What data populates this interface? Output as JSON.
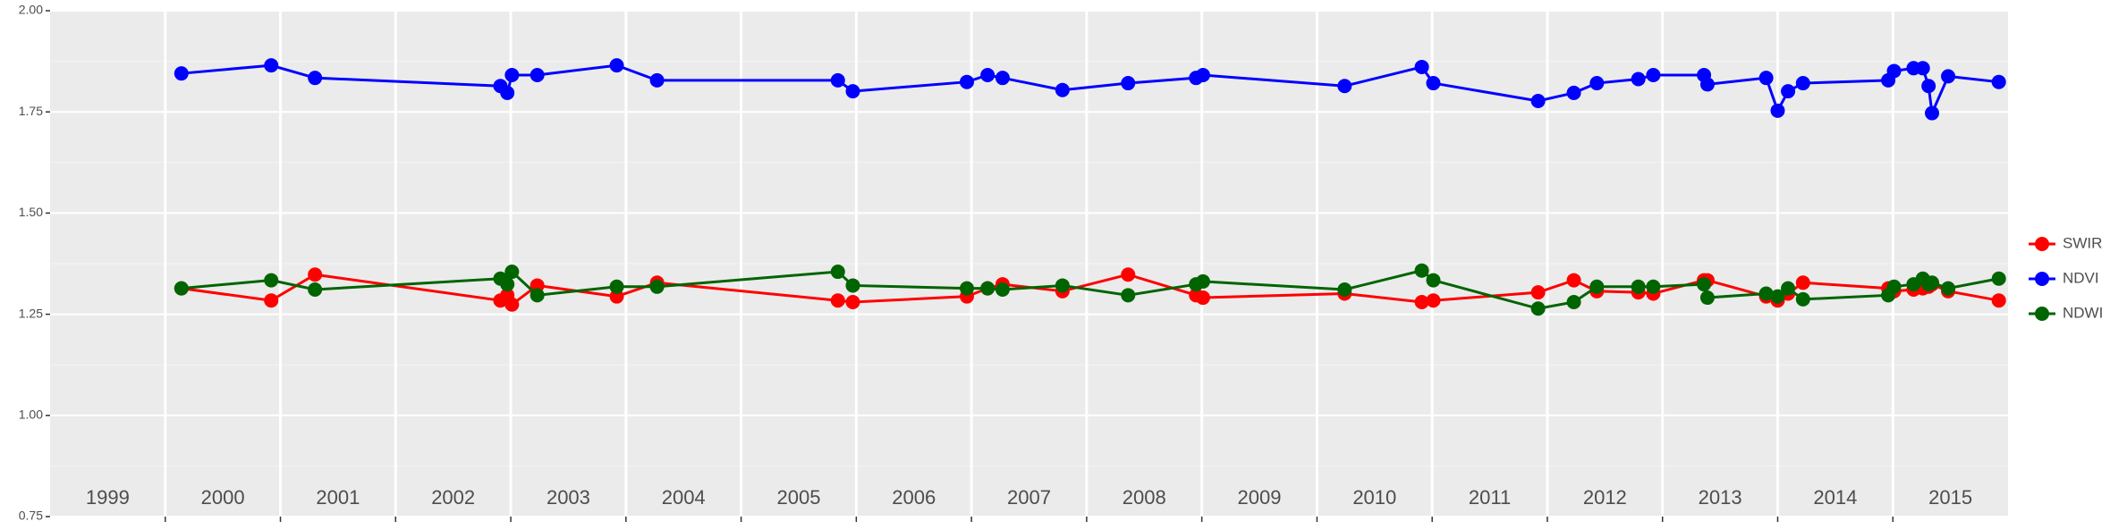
{
  "chart_data": {
    "type": "line",
    "x": [
      2000.14,
      2000.92,
      2001.3,
      2002.91,
      2002.97,
      2003.01,
      2003.23,
      2003.92,
      2004.27,
      2005.84,
      2005.97,
      2006.96,
      2007.14,
      2007.27,
      2007.79,
      2008.36,
      2008.95,
      2009.01,
      2010.24,
      2010.91,
      2011.01,
      2011.92,
      2012.23,
      2012.43,
      2012.79,
      2012.92,
      2013.36,
      2013.39,
      2013.9,
      2014.0,
      2014.09,
      2014.22,
      2014.96,
      2015.01,
      2015.18,
      2015.26,
      2015.31,
      2015.34,
      2015.48,
      2015.92
    ],
    "series": [
      {
        "name": "SWIR",
        "color": "#ff0000",
        "values": [
          1.314,
          1.284,
          1.348,
          1.284,
          1.297,
          1.274,
          1.321,
          1.294,
          1.328,
          1.284,
          1.28,
          1.294,
          1.314,
          1.324,
          1.307,
          1.348,
          1.297,
          1.291,
          1.301,
          1.28,
          1.284,
          1.304,
          1.334,
          1.307,
          1.304,
          1.301,
          1.334,
          1.334,
          1.294,
          1.284,
          1.301,
          1.328,
          1.314,
          1.307,
          1.311,
          1.314,
          1.318,
          1.324,
          1.307,
          1.284
        ]
      },
      {
        "name": "NDVI",
        "color": "#0000ff",
        "values": [
          1.845,
          1.865,
          1.834,
          1.814,
          1.797,
          1.841,
          1.841,
          1.865,
          1.828,
          1.828,
          1.801,
          1.824,
          1.841,
          1.834,
          1.804,
          1.821,
          1.834,
          1.841,
          1.814,
          1.861,
          1.821,
          1.777,
          1.797,
          1.821,
          1.831,
          1.841,
          1.841,
          1.818,
          1.834,
          1.753,
          1.801,
          1.821,
          1.828,
          1.851,
          1.858,
          1.858,
          1.814,
          1.747,
          1.838,
          1.824
        ]
      },
      {
        "name": "NDWI",
        "color": "#006400",
        "values": [
          1.314,
          1.334,
          1.311,
          1.338,
          1.324,
          1.355,
          1.297,
          1.318,
          1.318,
          1.355,
          1.321,
          1.314,
          1.314,
          1.311,
          1.321,
          1.297,
          1.324,
          1.331,
          1.311,
          1.358,
          1.334,
          1.264,
          1.28,
          1.318,
          1.318,
          1.318,
          1.324,
          1.291,
          1.301,
          1.294,
          1.314,
          1.287,
          1.297,
          1.318,
          1.324,
          1.338,
          1.324,
          1.328,
          1.314,
          1.338
        ]
      }
    ],
    "xlim": [
      1999,
      2016
    ],
    "xticks": [
      {
        "value": 1999.5,
        "label": "1999"
      },
      {
        "value": 2000.5,
        "label": "2000"
      },
      {
        "value": 2001.5,
        "label": "2001"
      },
      {
        "value": 2002.5,
        "label": "2002"
      },
      {
        "value": 2003.5,
        "label": "2003"
      },
      {
        "value": 2004.5,
        "label": "2004"
      },
      {
        "value": 2005.5,
        "label": "2005"
      },
      {
        "value": 2006.5,
        "label": "2006"
      },
      {
        "value": 2007.5,
        "label": "2007"
      },
      {
        "value": 2008.5,
        "label": "2008"
      },
      {
        "value": 2009.5,
        "label": "2009"
      },
      {
        "value": 2010.5,
        "label": "2010"
      },
      {
        "value": 2011.5,
        "label": "2011"
      },
      {
        "value": 2012.5,
        "label": "2012"
      },
      {
        "value": 2013.5,
        "label": "2013"
      },
      {
        "value": 2014.5,
        "label": "2014"
      },
      {
        "value": 2015.5,
        "label": "2015"
      }
    ],
    "ylim": [
      0.75,
      2.0
    ],
    "yticks": [
      0.75,
      {
        "value": 1.0,
        "label": "1.00"
      },
      1.25,
      {
        "value": 1.5,
        "label": "1.50"
      },
      1.75,
      {
        "value": 2.0,
        "label": "2.00"
      }
    ],
    "grid": true,
    "legend": "right"
  }
}
